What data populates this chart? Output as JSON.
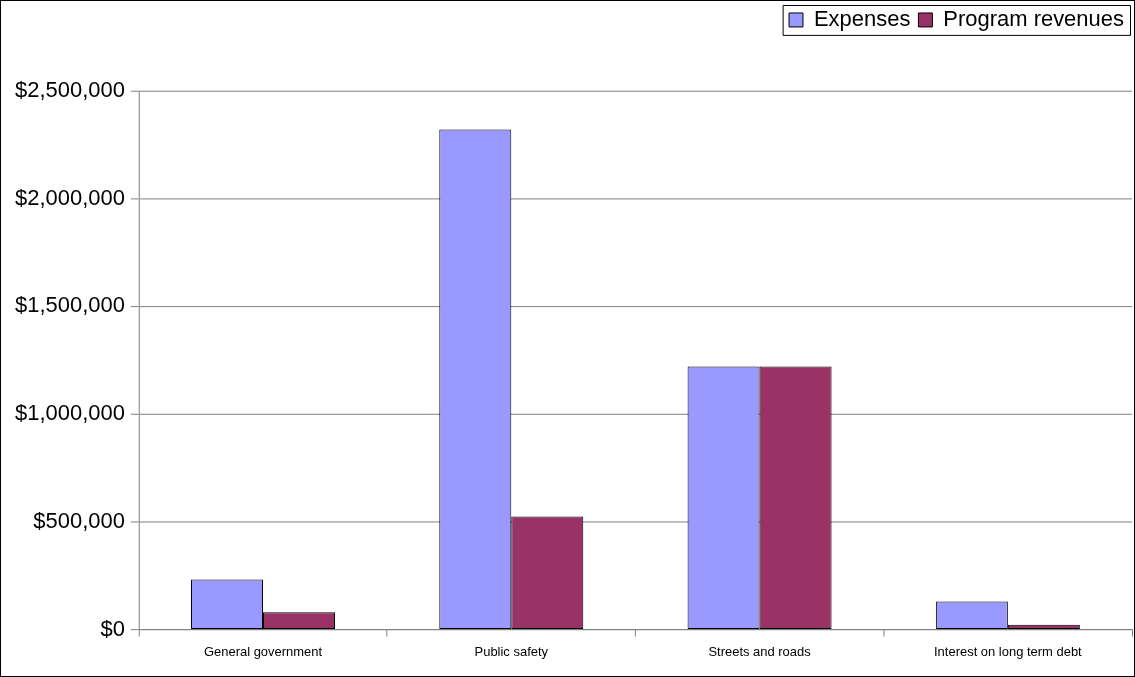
{
  "chart_data": {
    "type": "bar",
    "categories": [
      "General government",
      "Public safety",
      "Streets and roads",
      "Interest on long term debt"
    ],
    "series": [
      {
        "name": "Expenses",
        "color": "#9999ff",
        "values": [
          232000,
          2320000,
          1220000,
          130000
        ]
      },
      {
        "name": "Program revenues",
        "color": "#993366",
        "values": [
          80000,
          525000,
          1220000,
          22000
        ]
      }
    ],
    "ylim": [
      0,
      2500000
    ],
    "yticks": [
      {
        "value": 0,
        "label": "$0"
      },
      {
        "value": 500000,
        "label": "$500,000"
      },
      {
        "value": 1000000,
        "label": "$1,000,000"
      },
      {
        "value": 1500000,
        "label": "$1,500,000"
      },
      {
        "value": 2000000,
        "label": "$2,000,000"
      },
      {
        "value": 2500000,
        "label": "$2,500,000"
      }
    ],
    "grid": "y",
    "legend": "top right"
  }
}
